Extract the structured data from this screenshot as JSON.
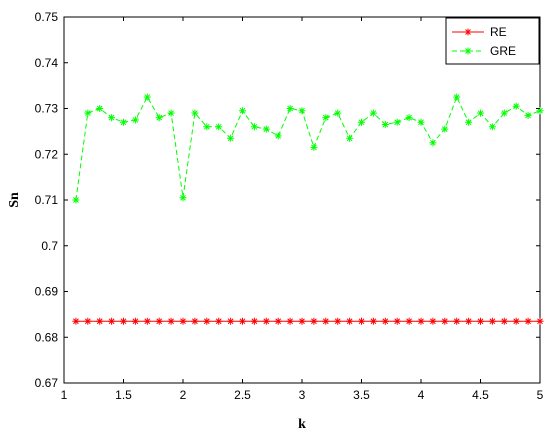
{
  "chart_data": {
    "type": "line",
    "xlabel": "k",
    "ylabel": "Sn",
    "xlim": [
      1,
      5
    ],
    "ylim": [
      0.67,
      0.75
    ],
    "xticks": [
      1,
      1.5,
      2,
      2.5,
      3,
      3.5,
      4,
      4.5,
      5
    ],
    "xtick_labels": [
      "1",
      "1.5",
      "2",
      "2.5",
      "3",
      "3.5",
      "4",
      "4.5",
      "5"
    ],
    "yticks": [
      0.67,
      0.68,
      0.69,
      0.7,
      0.71,
      0.72,
      0.73,
      0.74,
      0.75
    ],
    "ytick_labels": [
      "0.67",
      "0.68",
      "0.69",
      "0.7",
      "0.71",
      "0.72",
      "0.73",
      "0.74",
      "0.75"
    ],
    "grid": false,
    "legend_position": "top-right",
    "x": [
      1.1,
      1.2,
      1.3,
      1.4,
      1.5,
      1.6,
      1.7,
      1.8,
      1.9,
      2.0,
      2.1,
      2.2,
      2.3,
      2.4,
      2.5,
      2.6,
      2.7,
      2.8,
      2.9,
      3.0,
      3.1,
      3.2,
      3.3,
      3.4,
      3.5,
      3.6,
      3.7,
      3.8,
      3.9,
      4.0,
      4.1,
      4.2,
      4.3,
      4.4,
      4.5,
      4.6,
      4.7,
      4.8,
      4.9,
      5.0
    ],
    "series": [
      {
        "name": "RE",
        "color": "#ff0000",
        "line_style": "solid",
        "marker": "asterisk",
        "values": [
          0.6835,
          0.6835,
          0.6835,
          0.6835,
          0.6835,
          0.6835,
          0.6835,
          0.6835,
          0.6835,
          0.6835,
          0.6835,
          0.6835,
          0.6835,
          0.6835,
          0.6835,
          0.6835,
          0.6835,
          0.6835,
          0.6835,
          0.6835,
          0.6835,
          0.6835,
          0.6835,
          0.6835,
          0.6835,
          0.6835,
          0.6835,
          0.6835,
          0.6835,
          0.6835,
          0.6835,
          0.6835,
          0.6835,
          0.6835,
          0.6835,
          0.6835,
          0.6835,
          0.6835,
          0.6835,
          0.6835
        ]
      },
      {
        "name": "GRE",
        "color": "#00ff00",
        "line_style": "dashed",
        "marker": "asterisk",
        "values": [
          0.71,
          0.729,
          0.73,
          0.728,
          0.727,
          0.7275,
          0.7325,
          0.728,
          0.729,
          0.7105,
          0.729,
          0.726,
          0.726,
          0.7235,
          0.7295,
          0.726,
          0.7255,
          0.724,
          0.73,
          0.7295,
          0.7215,
          0.728,
          0.729,
          0.7235,
          0.727,
          0.729,
          0.7265,
          0.727,
          0.728,
          0.727,
          0.7225,
          0.7255,
          0.7325,
          0.727,
          0.729,
          0.726,
          0.729,
          0.7305,
          0.7285,
          0.7295
        ]
      }
    ]
  }
}
